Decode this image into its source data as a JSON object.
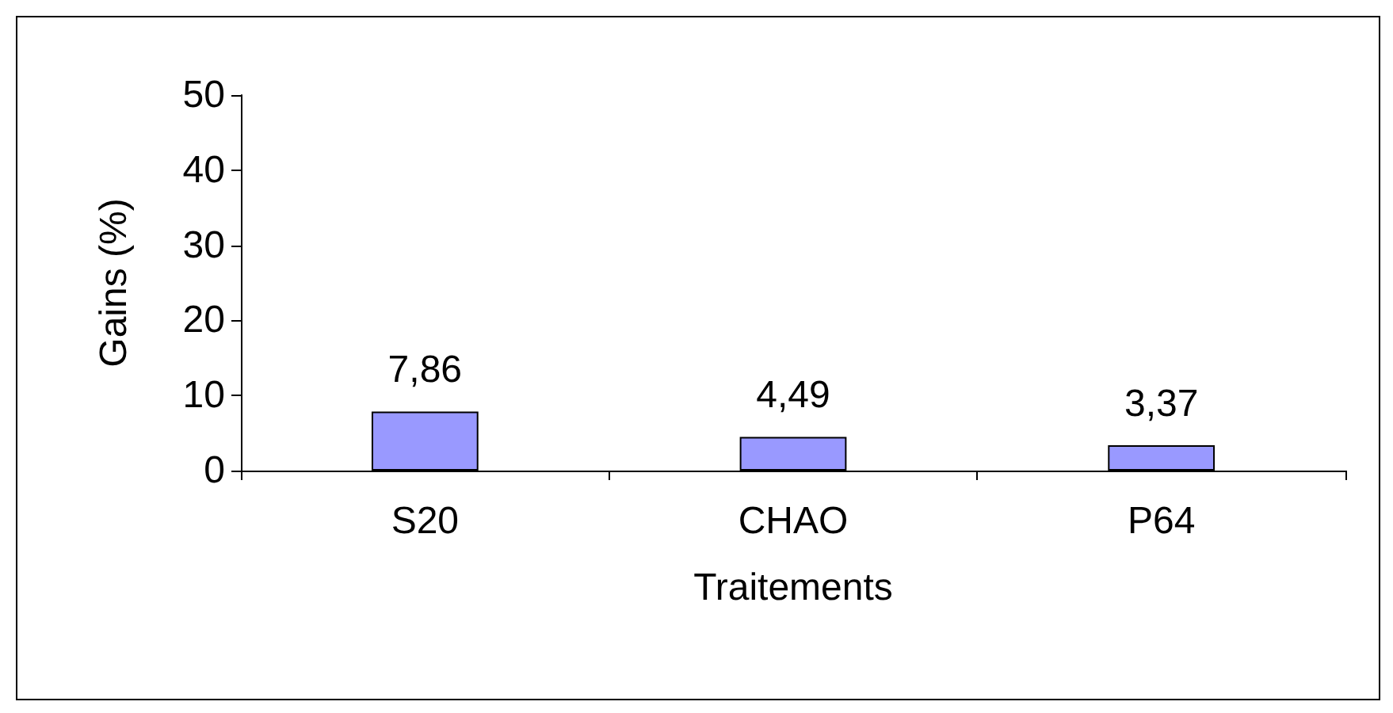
{
  "chart_data": {
    "type": "bar",
    "xlabel": "Traitements",
    "ylabel": "Gains (%)",
    "categories": [
      "S20",
      "CHAO",
      "P64"
    ],
    "values": [
      7.86,
      4.49,
      3.37
    ],
    "value_labels": [
      "7,86",
      "4,49",
      "3,37"
    ],
    "color": "#9999ff",
    "ylim": [
      0,
      50
    ],
    "yticks": [
      0,
      10,
      20,
      30,
      40,
      50
    ],
    "grid": false
  }
}
